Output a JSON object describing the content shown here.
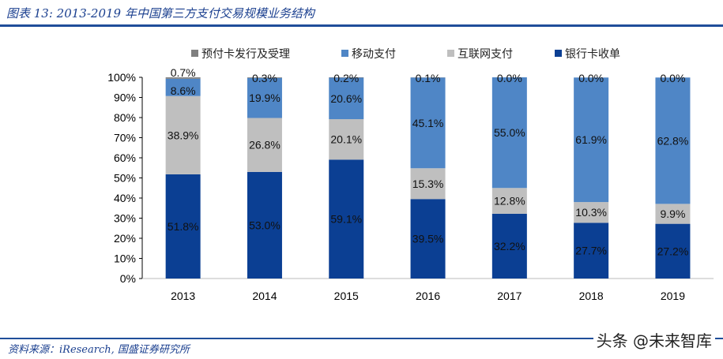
{
  "title": "图表 13: 2013-2019 年中国第三方支付交易规模业务结构",
  "source": "资料来源：iResearch, 国盛证券研究所",
  "watermark": "头条 @未来智库",
  "chart_data": {
    "type": "bar",
    "stacked": true,
    "categories": [
      "2013",
      "2014",
      "2015",
      "2016",
      "2017",
      "2018",
      "2019"
    ],
    "ylim": [
      0,
      100
    ],
    "yticks": [
      "0%",
      "10%",
      "20%",
      "30%",
      "40%",
      "50%",
      "60%",
      "70%",
      "80%",
      "90%",
      "100%"
    ],
    "legend_position": "top",
    "series": [
      {
        "name": "银行卡收单",
        "color": "#0b3f93",
        "values": [
          51.8,
          53.0,
          59.1,
          39.5,
          32.2,
          27.7,
          27.2
        ],
        "labels": [
          "51.8%",
          "53.0%",
          "59.1%",
          "39.5%",
          "32.2%",
          "27.7%",
          "27.2%"
        ]
      },
      {
        "name": "互联网支付",
        "color": "#bfbfbf",
        "values": [
          38.9,
          26.8,
          20.1,
          15.3,
          12.8,
          10.3,
          9.9
        ],
        "labels": [
          "38.9%",
          "26.8%",
          "20.1%",
          "15.3%",
          "12.8%",
          "10.3%",
          "9.9%"
        ]
      },
      {
        "name": "移动支付",
        "color": "#4f86c6",
        "values": [
          8.6,
          19.9,
          20.6,
          45.1,
          55.0,
          61.9,
          62.8
        ],
        "labels": [
          "8.6%",
          "19.9%",
          "20.6%",
          "45.1%",
          "55.0%",
          "61.9%",
          "62.8%"
        ]
      },
      {
        "name": "预付卡发行及受理",
        "color": "#7f7f7f",
        "values": [
          0.7,
          0.3,
          0.2,
          0.1,
          0.0,
          0.0,
          0.0
        ],
        "labels": [
          "0.7%",
          "0.3%",
          "0.2%",
          "0.1%",
          "0.0%",
          "0.0%",
          "0.0%"
        ]
      }
    ],
    "legend_order": [
      "预付卡发行及受理",
      "移动支付",
      "互联网支付",
      "银行卡收单"
    ]
  }
}
